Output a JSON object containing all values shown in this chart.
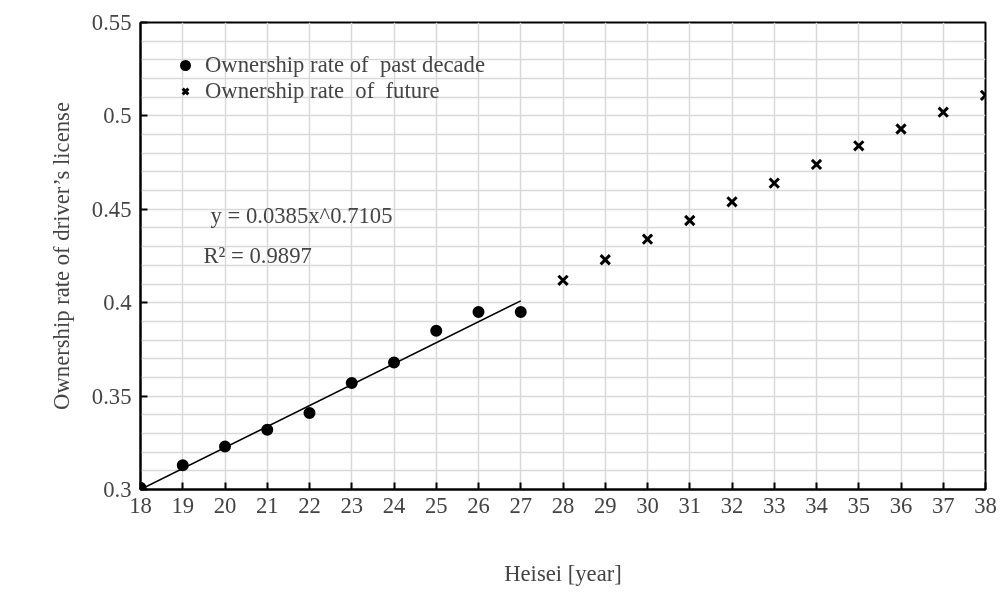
{
  "chart_data": {
    "type": "scatter",
    "xlabel": "Heisei [year]",
    "ylabel": "Ownership rate of driver’s license",
    "xlim": [
      18,
      38
    ],
    "xticks": [
      18,
      19,
      20,
      21,
      22,
      23,
      24,
      25,
      26,
      27,
      28,
      29,
      30,
      31,
      32,
      33,
      34,
      35,
      36,
      37,
      38
    ],
    "ylim": [
      0.3,
      0.55
    ],
    "yticks": [
      0.3,
      {
        "value": 0.35,
        "label": "0.35"
      },
      {
        "value": 0.4,
        "label": "0.4"
      },
      {
        "value": 0.45,
        "label": "0.45"
      },
      {
        "value": 0.5,
        "label": "0.5"
      },
      {
        "value": 0.55,
        "label": "0.55"
      }
    ],
    "grid": true,
    "legend": "top left",
    "series": [
      {
        "name": "Ownership rate of  past decade",
        "color": "#000000",
        "marker": "circle",
        "x": [
          18,
          19,
          20,
          21,
          22,
          23,
          24,
          25,
          26,
          27
        ],
        "values": [
          0.301,
          0.313,
          0.323,
          0.332,
          0.341,
          0.357,
          0.368,
          0.385,
          0.395,
          0.395
        ]
      },
      {
        "name": "Ownership rate  of  future",
        "color": "#000000",
        "marker": "cross",
        "x": [
          28,
          29,
          30,
          31,
          32,
          33,
          34,
          35,
          36,
          37,
          38
        ],
        "values": [
          0.412,
          0.423,
          0.434,
          0.444,
          0.454,
          0.464,
          0.474,
          0.484,
          0.493,
          0.502,
          0.511
        ]
      },
      {
        "type": "line",
        "color": "#000000",
        "line_style": "solid",
        "x": [
          18,
          27
        ],
        "values": [
          0.3,
          0.401
        ]
      }
    ],
    "annotations": [
      "y = 0.0385x^0.7105",
      "R² = 0.9897"
    ]
  }
}
